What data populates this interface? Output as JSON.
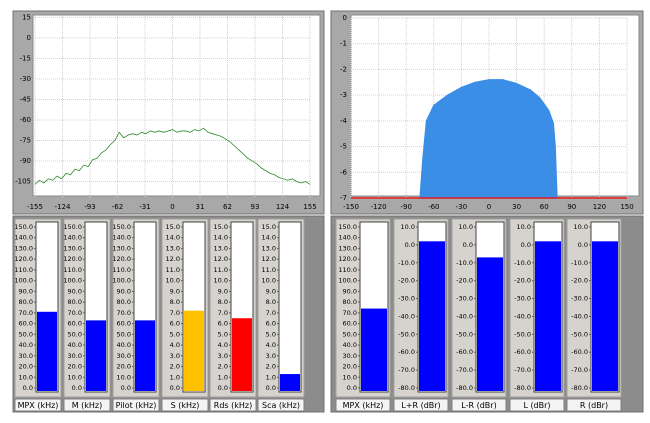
{
  "chart_data": [
    {
      "type": "line",
      "color": "#2e8b2e",
      "x": [
        -155,
        -150,
        -145,
        -140,
        -135,
        -130,
        -125,
        -120,
        -115,
        -110,
        -105,
        -100,
        -95,
        -90,
        -85,
        -80,
        -75,
        -70,
        -65,
        -60,
        -55,
        -50,
        -45,
        -40,
        -35,
        -30,
        -25,
        -20,
        -15,
        -10,
        -5,
        0,
        5,
        10,
        15,
        20,
        25,
        30,
        35,
        40,
        45,
        50,
        55,
        60,
        65,
        70,
        75,
        80,
        85,
        90,
        95,
        100,
        105,
        110,
        115,
        120,
        125,
        130,
        135,
        140,
        145,
        150,
        155
      ],
      "values": [
        -107,
        -104,
        -106,
        -103,
        -104,
        -101,
        -103,
        -99,
        -100,
        -96,
        -97,
        -93,
        -94,
        -89,
        -88,
        -84,
        -82,
        -78,
        -75,
        -69,
        -73,
        -71,
        -70,
        -71,
        -69,
        -70,
        -68,
        -69,
        -68,
        -69,
        -68,
        -67,
        -69,
        -68,
        -68,
        -69,
        -67,
        -68,
        -66,
        -69,
        -70,
        -71,
        -72,
        -74,
        -76,
        -79,
        -82,
        -85,
        -88,
        -90,
        -92,
        -95,
        -97,
        -99,
        -100,
        -102,
        -103,
        -104,
        -103,
        -105,
        -106,
        -105,
        -107
      ],
      "xlim": [
        -155,
        155
      ],
      "ylim": [
        -117,
        16
      ],
      "xticks": [
        -155,
        -124,
        -93,
        -62,
        -31,
        0,
        31,
        62,
        93,
        124,
        155
      ],
      "yticks": [
        15,
        0,
        -15,
        -30,
        -45,
        -60,
        -75,
        -90,
        -105
      ],
      "grid": true
    },
    {
      "type": "area",
      "series": [
        {
          "color": "#3a8ee6",
          "x": [
            -75,
            -72,
            -68,
            -60,
            -45,
            -30,
            -15,
            0,
            15,
            30,
            45,
            55,
            65,
            70,
            72,
            74
          ],
          "values": [
            -7,
            -5.5,
            -4,
            -3.4,
            -3,
            -2.7,
            -2.5,
            -2.4,
            -2.4,
            -2.55,
            -2.8,
            -3.1,
            -3.6,
            -4.1,
            -5,
            -7
          ]
        },
        {
          "color": "#ff0000",
          "x": [
            -150,
            -78,
            150
          ],
          "values": [
            -7,
            -7,
            -7
          ]
        }
      ],
      "xlim": [
        -150,
        150
      ],
      "ylim": [
        -7,
        0
      ],
      "xticks": [
        -150,
        -120,
        -90,
        -60,
        -30,
        0,
        30,
        60,
        90,
        120,
        150
      ],
      "yticks": [
        0,
        -1,
        -2,
        -3,
        -4,
        -5,
        -6,
        -7
      ],
      "grid": true
    },
    {
      "type": "meter",
      "label": "MPX (kHz)",
      "value": 71,
      "color": "#0000ff",
      "ylim": [
        0,
        150
      ],
      "yticks": [
        {
          "value": 150,
          "label": "150.0"
        },
        {
          "value": 140,
          "label": "140.0"
        },
        {
          "value": 130,
          "label": "130.0"
        },
        {
          "value": 120,
          "label": "120.0"
        },
        {
          "value": 110,
          "label": "110.0"
        },
        {
          "value": 100,
          "label": "100.0"
        },
        {
          "value": 90,
          "label": "90.0"
        },
        {
          "value": 80,
          "label": "80.0"
        },
        {
          "value": 70,
          "label": "70.0"
        },
        {
          "value": 60,
          "label": "60.0"
        },
        {
          "value": 50,
          "label": "50.0"
        },
        {
          "value": 40,
          "label": "40.0"
        },
        {
          "value": 30,
          "label": "30.0"
        },
        {
          "value": 20,
          "label": "20.0"
        },
        {
          "value": 10,
          "label": "10.0"
        },
        {
          "value": 0,
          "label": "0.0"
        }
      ]
    },
    {
      "type": "meter",
      "label": "M (kHz)",
      "value": 63,
      "color": "#0000ff",
      "ylim": [
        0,
        150
      ],
      "yticks": [
        {
          "value": 150,
          "label": "150.0"
        },
        {
          "value": 140,
          "label": "140.0"
        },
        {
          "value": 130,
          "label": "130.0"
        },
        {
          "value": 120,
          "label": "120.0"
        },
        {
          "value": 110,
          "label": "110.0"
        },
        {
          "value": 100,
          "label": "100.0"
        },
        {
          "value": 90,
          "label": "90.0"
        },
        {
          "value": 80,
          "label": "80.0"
        },
        {
          "value": 70,
          "label": "70.0"
        },
        {
          "value": 60,
          "label": "60.0"
        },
        {
          "value": 50,
          "label": "50.0"
        },
        {
          "value": 40,
          "label": "40.0"
        },
        {
          "value": 30,
          "label": "30.0"
        },
        {
          "value": 20,
          "label": "20.0"
        },
        {
          "value": 10,
          "label": "10.0"
        },
        {
          "value": 0,
          "label": "0.0"
        }
      ]
    },
    {
      "type": "meter",
      "label": "Pilot (kHz)",
      "value": 63,
      "color": "#0000ff",
      "ylim": [
        0,
        150
      ],
      "yticks": [
        {
          "value": 150,
          "label": "150.0"
        },
        {
          "value": 140,
          "label": "140.0"
        },
        {
          "value": 130,
          "label": "130.0"
        },
        {
          "value": 120,
          "label": "120.0"
        },
        {
          "value": 110,
          "label": "110.0"
        },
        {
          "value": 100,
          "label": "100.0"
        },
        {
          "value": 90,
          "label": "90.0"
        },
        {
          "value": 80,
          "label": "80.0"
        },
        {
          "value": 70,
          "label": "70.0"
        },
        {
          "value": 60,
          "label": "60.0"
        },
        {
          "value": 50,
          "label": "50.0"
        },
        {
          "value": 40,
          "label": "40.0"
        },
        {
          "value": 30,
          "label": "30.0"
        },
        {
          "value": 20,
          "label": "20.0"
        },
        {
          "value": 10,
          "label": "10.0"
        },
        {
          "value": 0,
          "label": "0.0"
        }
      ]
    },
    {
      "type": "meter",
      "label": "S (kHz)",
      "value": 7.2,
      "color": "#ffc000",
      "ylim": [
        0,
        15
      ],
      "yticks": [
        {
          "value": 15,
          "label": "15.0"
        },
        {
          "value": 14,
          "label": "14.0"
        },
        {
          "value": 13,
          "label": "13.0"
        },
        {
          "value": 12,
          "label": "12.0"
        },
        {
          "value": 11,
          "label": "11.0"
        },
        {
          "value": 10,
          "label": "10.0"
        },
        {
          "value": 9,
          "label": "9.0"
        },
        {
          "value": 8,
          "label": "8.0"
        },
        {
          "value": 7,
          "label": "7.0"
        },
        {
          "value": 6,
          "label": "6.0"
        },
        {
          "value": 5,
          "label": "5.0"
        },
        {
          "value": 4,
          "label": "4.0"
        },
        {
          "value": 3,
          "label": "3.0"
        },
        {
          "value": 2,
          "label": "2.0"
        },
        {
          "value": 1,
          "label": "1.0"
        },
        {
          "value": 0,
          "label": "0.0"
        }
      ]
    },
    {
      "type": "meter",
      "label": "Rds (kHz)",
      "value": 6.5,
      "color": "#ff0000",
      "ylim": [
        0,
        15
      ],
      "yticks": [
        {
          "value": 15,
          "label": "15.0"
        },
        {
          "value": 14,
          "label": "14.0"
        },
        {
          "value": 13,
          "label": "13.0"
        },
        {
          "value": 12,
          "label": "12.0"
        },
        {
          "value": 11,
          "label": "11.0"
        },
        {
          "value": 10,
          "label": "10.0"
        },
        {
          "value": 9,
          "label": "9.0"
        },
        {
          "value": 8,
          "label": "8.0"
        },
        {
          "value": 7,
          "label": "7.0"
        },
        {
          "value": 6,
          "label": "6.0"
        },
        {
          "value": 5,
          "label": "5.0"
        },
        {
          "value": 4,
          "label": "4.0"
        },
        {
          "value": 3,
          "label": "3.0"
        },
        {
          "value": 2,
          "label": "2.0"
        },
        {
          "value": 1,
          "label": "1.0"
        },
        {
          "value": 0,
          "label": "0.0"
        }
      ]
    },
    {
      "type": "meter",
      "label": "Sca (kHz)",
      "value": 1.3,
      "color": "#0000ff",
      "ylim": [
        0,
        15
      ],
      "yticks": [
        {
          "value": 15,
          "label": "15.0"
        },
        {
          "value": 14,
          "label": "14.0"
        },
        {
          "value": 13,
          "label": "13.0"
        },
        {
          "value": 12,
          "label": "12.0"
        },
        {
          "value": 11,
          "label": "11.0"
        },
        {
          "value": 10,
          "label": "10.0"
        },
        {
          "value": 9,
          "label": "9.0"
        },
        {
          "value": 8,
          "label": "8.0"
        },
        {
          "value": 7,
          "label": "7.0"
        },
        {
          "value": 6,
          "label": "6.0"
        },
        {
          "value": 5,
          "label": "5.0"
        },
        {
          "value": 4,
          "label": "4.0"
        },
        {
          "value": 3,
          "label": "3.0"
        },
        {
          "value": 2,
          "label": "2.0"
        },
        {
          "value": 1,
          "label": "1.0"
        },
        {
          "value": 0,
          "label": "0.0"
        }
      ]
    },
    {
      "type": "meter",
      "label": "MPX (kHz)",
      "value": 74,
      "color": "#0000ff",
      "ylim": [
        0,
        150
      ],
      "yticks": [
        {
          "value": 150,
          "label": "150.0"
        },
        {
          "value": 140,
          "label": "140.0"
        },
        {
          "value": 130,
          "label": "130.0"
        },
        {
          "value": 120,
          "label": "120.0"
        },
        {
          "value": 110,
          "label": "110.0"
        },
        {
          "value": 100,
          "label": "100.0"
        },
        {
          "value": 90,
          "label": "90.0"
        },
        {
          "value": 80,
          "label": "80.0"
        },
        {
          "value": 70,
          "label": "70.0"
        },
        {
          "value": 60,
          "label": "60.0"
        },
        {
          "value": 50,
          "label": "50.0"
        },
        {
          "value": 40,
          "label": "40.0"
        },
        {
          "value": 30,
          "label": "30.0"
        },
        {
          "value": 20,
          "label": "20.0"
        },
        {
          "value": 10,
          "label": "10.0"
        },
        {
          "value": 0,
          "label": "0.0"
        }
      ]
    },
    {
      "type": "meter",
      "label": "L+R (dBr)",
      "value": 2,
      "color": "#0000ff",
      "ylim": [
        -80,
        10
      ],
      "yticks": [
        {
          "value": 10,
          "label": "10.0"
        },
        {
          "value": 0,
          "label": "0.0"
        },
        {
          "value": -10,
          "label": "-10.0"
        },
        {
          "value": -20,
          "label": "-20.0"
        },
        {
          "value": -30,
          "label": "-30.0"
        },
        {
          "value": -40,
          "label": "-40.0"
        },
        {
          "value": -50,
          "label": "-50.0"
        },
        {
          "value": -60,
          "label": "-60.0"
        },
        {
          "value": -70,
          "label": "-70.0"
        },
        {
          "value": -80,
          "label": "-80.0"
        }
      ]
    },
    {
      "type": "meter",
      "label": "L-R (dBr)",
      "value": -7,
      "color": "#0000ff",
      "ylim": [
        -80,
        10
      ],
      "yticks": [
        {
          "value": 10,
          "label": "10.0"
        },
        {
          "value": 0,
          "label": "0.0"
        },
        {
          "value": -10,
          "label": "-10.0"
        },
        {
          "value": -20,
          "label": "-20.0"
        },
        {
          "value": -30,
          "label": "-30.0"
        },
        {
          "value": -40,
          "label": "-40.0"
        },
        {
          "value": -50,
          "label": "-50.0"
        },
        {
          "value": -60,
          "label": "-60.0"
        },
        {
          "value": -70,
          "label": "-70.0"
        },
        {
          "value": -80,
          "label": "-80.0"
        }
      ]
    },
    {
      "type": "meter",
      "label": "L (dBr)",
      "value": 2,
      "color": "#0000ff",
      "ylim": [
        -80,
        10
      ],
      "yticks": [
        {
          "value": 10,
          "label": "10.0"
        },
        {
          "value": 0,
          "label": "0.0"
        },
        {
          "value": -10,
          "label": "-10.0"
        },
        {
          "value": -20,
          "label": "-20.0"
        },
        {
          "value": -30,
          "label": "-30.0"
        },
        {
          "value": -40,
          "label": "-40.0"
        },
        {
          "value": -50,
          "label": "-50.0"
        },
        {
          "value": -60,
          "label": "-60.0"
        },
        {
          "value": -70,
          "label": "-70.0"
        },
        {
          "value": -80,
          "label": "-80.0"
        }
      ]
    },
    {
      "type": "meter",
      "label": "R (dBr)",
      "value": 2,
      "color": "#0000ff",
      "ylim": [
        -80,
        10
      ],
      "yticks": [
        {
          "value": 10,
          "label": "10.0"
        },
        {
          "value": 0,
          "label": "0.0"
        },
        {
          "value": -10,
          "label": "-10.0"
        },
        {
          "value": -20,
          "label": "-20.0"
        },
        {
          "value": -30,
          "label": "-30.0"
        },
        {
          "value": -40,
          "label": "-40.0"
        },
        {
          "value": -50,
          "label": "-50.0"
        },
        {
          "value": -60,
          "label": "-60.0"
        },
        {
          "value": -70,
          "label": "-70.0"
        },
        {
          "value": -80,
          "label": "-80.0"
        }
      ]
    }
  ]
}
